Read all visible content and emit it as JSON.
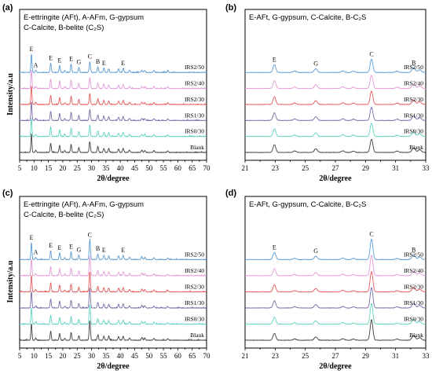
{
  "colors": {
    "IRS2/50": "#5b9bd5",
    "IRS2/40": "#e39ad8",
    "IRS2/30": "#e8585a",
    "IRS1/30": "#7a6aa8",
    "IRS0/30": "#5fd3c0",
    "Blank": "#404040"
  },
  "chart_data": [
    {
      "id": "a",
      "panel_label": "(a)",
      "type": "line",
      "legend_lines": [
        "E-ettringite (AFt), A-AFm, G-gypsum",
        "C-Calcite, B-belite (C₂S)"
      ],
      "xlabel": "2θ/degree",
      "ylabel": "Intensity/a.u",
      "xlim": [
        5,
        70
      ],
      "xticks": [
        5,
        10,
        15,
        20,
        25,
        30,
        35,
        40,
        45,
        50,
        55,
        60,
        65,
        70
      ],
      "grid": false,
      "series": [
        {
          "name": "IRS2/50",
          "offset": 5
        },
        {
          "name": "IRS2/40",
          "offset": 4
        },
        {
          "name": "IRS2/30",
          "offset": 3
        },
        {
          "name": "IRS1/30",
          "offset": 2
        },
        {
          "name": "IRS0/30",
          "offset": 1
        },
        {
          "name": "Blank",
          "offset": 0
        }
      ],
      "peaks": [
        {
          "x": 9.1,
          "h": 1.0,
          "w": 0.18
        },
        {
          "x": 10.6,
          "h": 0.12,
          "w": 0.2
        },
        {
          "x": 15.8,
          "h": 0.5,
          "w": 0.2
        },
        {
          "x": 18.9,
          "h": 0.38,
          "w": 0.2
        },
        {
          "x": 20.7,
          "h": 0.1,
          "w": 0.2
        },
        {
          "x": 22.9,
          "h": 0.45,
          "w": 0.2
        },
        {
          "x": 25.6,
          "h": 0.28,
          "w": 0.2
        },
        {
          "x": 29.4,
          "h": 0.58,
          "w": 0.22
        },
        {
          "x": 32.2,
          "h": 0.3,
          "w": 0.22
        },
        {
          "x": 34.3,
          "h": 0.22,
          "w": 0.22
        },
        {
          "x": 36.0,
          "h": 0.2,
          "w": 0.22
        },
        {
          "x": 39.4,
          "h": 0.18,
          "w": 0.22
        },
        {
          "x": 41.0,
          "h": 0.22,
          "w": 0.22
        },
        {
          "x": 43.2,
          "h": 0.12,
          "w": 0.22
        },
        {
          "x": 47.5,
          "h": 0.12,
          "w": 0.22
        },
        {
          "x": 48.5,
          "h": 0.1,
          "w": 0.22
        },
        {
          "x": 51.7,
          "h": 0.1,
          "w": 0.22
        },
        {
          "x": 56.5,
          "h": 0.08,
          "w": 0.22
        }
      ],
      "annotations": [
        {
          "text": "E",
          "x": 9.1
        },
        {
          "text": "A",
          "x": 10.6
        },
        {
          "text": "E",
          "x": 15.8
        },
        {
          "text": "E",
          "x": 18.9
        },
        {
          "text": "E",
          "x": 22.9
        },
        {
          "text": "G",
          "x": 25.6
        },
        {
          "text": "C",
          "x": 29.4
        },
        {
          "text": "B",
          "x": 32.2
        },
        {
          "text": "E",
          "x": 34.3
        },
        {
          "text": "E",
          "x": 41.0
        }
      ]
    },
    {
      "id": "b",
      "panel_label": "(b)",
      "type": "line",
      "legend_lines": [
        "E-AFt, G-gypsum, C-Calcite, B-C₂S"
      ],
      "xlabel": "2θ/degree",
      "ylabel": "",
      "xlim": [
        21,
        33
      ],
      "xticks": [
        21,
        23,
        25,
        27,
        29,
        31,
        33
      ],
      "grid": false,
      "series": [
        {
          "name": "IRS2/50",
          "offset": 5
        },
        {
          "name": "IRS2/40",
          "offset": 4
        },
        {
          "name": "IRS2/30",
          "offset": 3
        },
        {
          "name": "IRS1/30",
          "offset": 2
        },
        {
          "name": "IRS0/30",
          "offset": 1
        },
        {
          "name": "Blank",
          "offset": 0
        }
      ],
      "peaks": [
        {
          "x": 22.95,
          "h": 0.42,
          "w": 0.09
        },
        {
          "x": 24.3,
          "h": 0.08,
          "w": 0.1
        },
        {
          "x": 25.7,
          "h": 0.2,
          "w": 0.1
        },
        {
          "x": 27.5,
          "h": 0.09,
          "w": 0.1
        },
        {
          "x": 28.2,
          "h": 0.07,
          "w": 0.1
        },
        {
          "x": 29.4,
          "h": 0.72,
          "w": 0.09
        },
        {
          "x": 31.1,
          "h": 0.07,
          "w": 0.1
        },
        {
          "x": 32.2,
          "h": 0.25,
          "w": 0.11
        },
        {
          "x": 32.6,
          "h": 0.15,
          "w": 0.11
        }
      ],
      "annotations": [
        {
          "text": "E",
          "x": 22.95
        },
        {
          "text": "G",
          "x": 25.7
        },
        {
          "text": "C",
          "x": 29.4
        },
        {
          "text": "B",
          "x": 32.2
        }
      ]
    },
    {
      "id": "c",
      "panel_label": "(c)",
      "type": "line",
      "legend_lines": [
        "E-ettringite (AFt), A-AFm, G-gypsum",
        "C-Calcite, B-belite (C₂S)"
      ],
      "xlabel": "2θ/degree",
      "ylabel": "Intensity/a.u",
      "xlim": [
        5,
        70
      ],
      "xticks": [
        5,
        10,
        15,
        20,
        25,
        30,
        35,
        40,
        45,
        50,
        55,
        60,
        65,
        70
      ],
      "grid": false,
      "series": [
        {
          "name": "IRS2/50",
          "offset": 5
        },
        {
          "name": "IRS2/40",
          "offset": 4
        },
        {
          "name": "IRS2/30",
          "offset": 3
        },
        {
          "name": "IRS1/30",
          "offset": 2
        },
        {
          "name": "IRS0/30",
          "offset": 1
        },
        {
          "name": "Blank",
          "offset": 0
        }
      ],
      "peaks": [
        {
          "x": 9.1,
          "h": 0.9,
          "w": 0.18
        },
        {
          "x": 10.6,
          "h": 0.12,
          "w": 0.2
        },
        {
          "x": 15.8,
          "h": 0.48,
          "w": 0.2
        },
        {
          "x": 18.9,
          "h": 0.36,
          "w": 0.2
        },
        {
          "x": 20.7,
          "h": 0.1,
          "w": 0.2
        },
        {
          "x": 22.9,
          "h": 0.42,
          "w": 0.2
        },
        {
          "x": 25.6,
          "h": 0.25,
          "w": 0.2
        },
        {
          "x": 29.4,
          "h": 1.05,
          "w": 0.22
        },
        {
          "x": 32.2,
          "h": 0.3,
          "w": 0.22
        },
        {
          "x": 34.3,
          "h": 0.22,
          "w": 0.22
        },
        {
          "x": 36.0,
          "h": 0.2,
          "w": 0.22
        },
        {
          "x": 39.4,
          "h": 0.2,
          "w": 0.22
        },
        {
          "x": 41.0,
          "h": 0.22,
          "w": 0.22
        },
        {
          "x": 43.2,
          "h": 0.12,
          "w": 0.22
        },
        {
          "x": 47.5,
          "h": 0.15,
          "w": 0.22
        },
        {
          "x": 48.5,
          "h": 0.12,
          "w": 0.22
        },
        {
          "x": 51.7,
          "h": 0.1,
          "w": 0.22
        },
        {
          "x": 56.5,
          "h": 0.08,
          "w": 0.22
        }
      ],
      "annotations": [
        {
          "text": "E",
          "x": 9.1
        },
        {
          "text": "A",
          "x": 10.6
        },
        {
          "text": "E",
          "x": 15.8
        },
        {
          "text": "E",
          "x": 18.9
        },
        {
          "text": "E",
          "x": 22.9
        },
        {
          "text": "G",
          "x": 25.6
        },
        {
          "text": "C",
          "x": 29.4
        },
        {
          "text": "B",
          "x": 32.2
        },
        {
          "text": "E",
          "x": 34.3
        },
        {
          "text": "E",
          "x": 41.0
        }
      ]
    },
    {
      "id": "d",
      "panel_label": "(d)",
      "type": "line",
      "legend_lines": [
        "E-AFt, G-gypsum, C-Calcite, B-C₂S"
      ],
      "xlabel": "2θ/degree",
      "ylabel": "",
      "xlim": [
        21,
        33
      ],
      "xticks": [
        21,
        23,
        25,
        27,
        29,
        31,
        33
      ],
      "grid": false,
      "series": [
        {
          "name": "IRS2/50",
          "offset": 5
        },
        {
          "name": "IRS2/40",
          "offset": 4
        },
        {
          "name": "IRS2/30",
          "offset": 3
        },
        {
          "name": "IRS1/30",
          "offset": 2
        },
        {
          "name": "IRS0/30",
          "offset": 1
        },
        {
          "name": "Blank",
          "offset": 0
        }
      ],
      "peaks": [
        {
          "x": 22.95,
          "h": 0.38,
          "w": 0.09
        },
        {
          "x": 24.3,
          "h": 0.07,
          "w": 0.1
        },
        {
          "x": 25.7,
          "h": 0.18,
          "w": 0.1
        },
        {
          "x": 27.5,
          "h": 0.08,
          "w": 0.1
        },
        {
          "x": 28.2,
          "h": 0.06,
          "w": 0.1
        },
        {
          "x": 29.4,
          "h": 1.1,
          "w": 0.09
        },
        {
          "x": 31.1,
          "h": 0.06,
          "w": 0.1
        },
        {
          "x": 32.2,
          "h": 0.25,
          "w": 0.11
        },
        {
          "x": 32.6,
          "h": 0.14,
          "w": 0.11
        }
      ],
      "annotations": [
        {
          "text": "E",
          "x": 22.95
        },
        {
          "text": "G",
          "x": 25.7
        },
        {
          "text": "C",
          "x": 29.4
        },
        {
          "text": "B",
          "x": 32.2
        }
      ]
    }
  ]
}
